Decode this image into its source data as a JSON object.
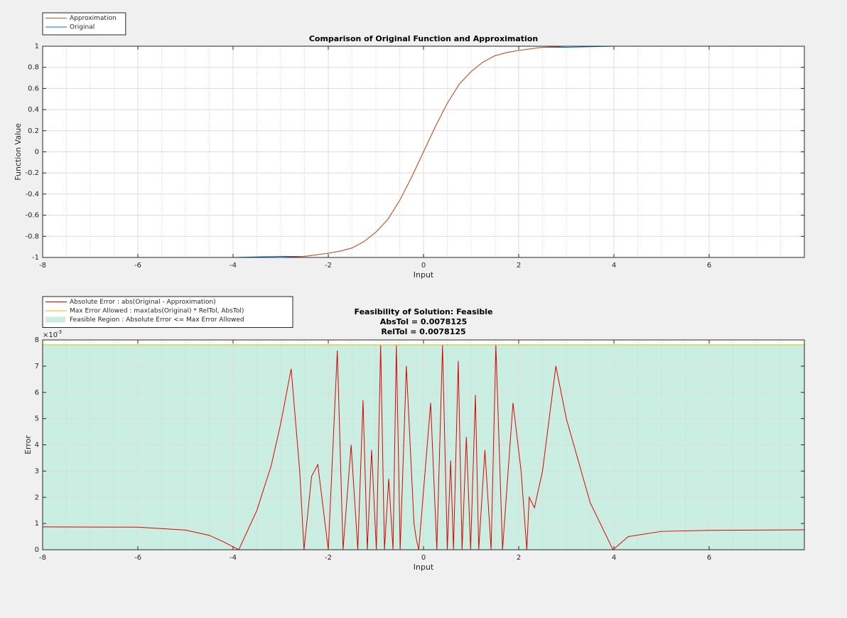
{
  "chart_data": [
    {
      "type": "line",
      "title": "Comparison of Original Function and Approximation",
      "x_label": "Input",
      "y_label": "Function Value",
      "x": [
        -8,
        -7,
        -6,
        -5,
        -4,
        -3,
        -2.5,
        -2,
        -1.75,
        -1.5,
        -1.25,
        -1,
        -0.75,
        -0.5,
        -0.25,
        0,
        0.25,
        0.5,
        0.75,
        1,
        1.25,
        1.5,
        1.75,
        2,
        2.5,
        3,
        4,
        5,
        6,
        7,
        8
      ],
      "series": [
        {
          "name": "Approximation",
          "color": "#d95319",
          "values": [
            -1,
            -1,
            -1,
            -1,
            -1,
            -1,
            -0.99,
            -0.96,
            -0.94,
            -0.91,
            -0.85,
            -0.76,
            -0.64,
            -0.46,
            -0.24,
            0,
            0.24,
            0.46,
            0.64,
            0.76,
            0.85,
            0.91,
            0.94,
            0.96,
            0.99,
            1,
            1,
            1,
            1,
            1,
            1
          ]
        },
        {
          "name": "Original",
          "color": "#0072bd",
          "values": [
            -1,
            -1,
            -1,
            -1,
            -1,
            -0.99,
            -0.99,
            -0.96,
            -0.94,
            -0.91,
            -0.85,
            -0.76,
            -0.64,
            -0.46,
            -0.24,
            0,
            0.24,
            0.46,
            0.64,
            0.76,
            0.85,
            0.91,
            0.94,
            0.96,
            0.99,
            0.99,
            1,
            1,
            1,
            1,
            1
          ]
        }
      ],
      "xlim": [
        -8,
        8
      ],
      "xticks": [
        -8,
        -6,
        -4,
        -2,
        0,
        2,
        4,
        6
      ],
      "ylim": [
        -1,
        1
      ],
      "yticks": [
        -1,
        -0.8,
        -0.6,
        -0.4,
        -0.2,
        0,
        0.2,
        0.4,
        0.6,
        0.8,
        1
      ],
      "grid": true,
      "minor_grid_x": true,
      "legend": "northwest-outside"
    },
    {
      "type": "line",
      "title": [
        "Feasibility of Solution: Feasible",
        "AbsTol = 0.0078125",
        "RelTol = 0.0078125"
      ],
      "x_label": "Input",
      "y_label": "Error",
      "y_multiplier": "×10",
      "y_exponent": "-3",
      "series": [
        {
          "name": "Absolute Error : abs(Original - Approximation)",
          "color": "#e00000",
          "style": "line",
          "x": [
            -8,
            -6,
            -5,
            -4.5,
            -4.2,
            -3.88,
            -3.5,
            -3.2,
            -3,
            -2.78,
            -2.6,
            -2.51,
            -2.35,
            -2.22,
            -2,
            -1.81,
            -1.69,
            -1.52,
            -1.38,
            -1.27,
            -1.18,
            -1.09,
            -0.99,
            -0.9,
            -0.82,
            -0.73,
            -0.64,
            -0.57,
            -0.49,
            -0.36,
            -0.2,
            -0.15,
            -0.1,
            0.15,
            0.28,
            0.4,
            0.5,
            0.57,
            0.63,
            0.73,
            0.81,
            0.9,
            0.99,
            1.09,
            1.16,
            1.29,
            1.42,
            1.52,
            1.66,
            1.88,
            2.05,
            2.17,
            2.22,
            2.33,
            2.5,
            2.78,
            3,
            3.5,
            3.98,
            4.3,
            5,
            6,
            8
          ],
          "values": [
            0.00087,
            0.00086,
            0.00075,
            0.00055,
            0.0003,
            0,
            0.0015,
            0.0032,
            0.0048,
            0.0069,
            0.003,
            0,
            0.0028,
            0.00325,
            0,
            0.0076,
            0,
            0.004,
            0,
            0.0057,
            0,
            0.0038,
            0,
            0.0078,
            0,
            0.0027,
            0,
            0.0078,
            0,
            0.007,
            0.001,
            0.0004,
            0,
            0.0056,
            0,
            0.0078,
            0,
            0.0034,
            0,
            0.0072,
            0,
            0.0043,
            0,
            0.0059,
            0,
            0.0038,
            0,
            0.0078,
            0,
            0.0056,
            0.003,
            0,
            0.002,
            0.0016,
            0.003,
            0.007,
            0.005,
            0.0018,
            0,
            0.0005,
            0.0007,
            0.00074,
            0.00076
          ]
        },
        {
          "name": "Max Error Allowed : max(abs(Original) * RelTol, AbsTol)",
          "color": "#d4c200",
          "style": "line",
          "x": [
            -8,
            8
          ],
          "values": [
            0.0078125,
            0.0078125
          ]
        },
        {
          "name": "Feasible Region : Absolute Error <= Max Error Allowed",
          "color": "#cbeee2",
          "style": "area",
          "x": [
            -8,
            8
          ],
          "values": [
            0.0078125,
            0.0078125
          ]
        }
      ],
      "xlim": [
        -8,
        8
      ],
      "xticks": [
        -8,
        -6,
        -4,
        -2,
        0,
        2,
        4,
        6
      ],
      "ylim": [
        0,
        0.008
      ],
      "yticks": [
        0,
        {
          "value": 0.001,
          "label": "1"
        },
        {
          "value": 0.002,
          "label": "2"
        },
        {
          "value": 0.003,
          "label": "3"
        },
        {
          "value": 0.004,
          "label": "4"
        },
        {
          "value": 0.005,
          "label": "5"
        },
        {
          "value": 0.006,
          "label": "6"
        },
        {
          "value": 0.007,
          "label": "7"
        },
        {
          "value": 0.008,
          "label": "8"
        }
      ],
      "grid": true,
      "minor_grid_x": true,
      "legend": "northwest-outside"
    }
  ]
}
